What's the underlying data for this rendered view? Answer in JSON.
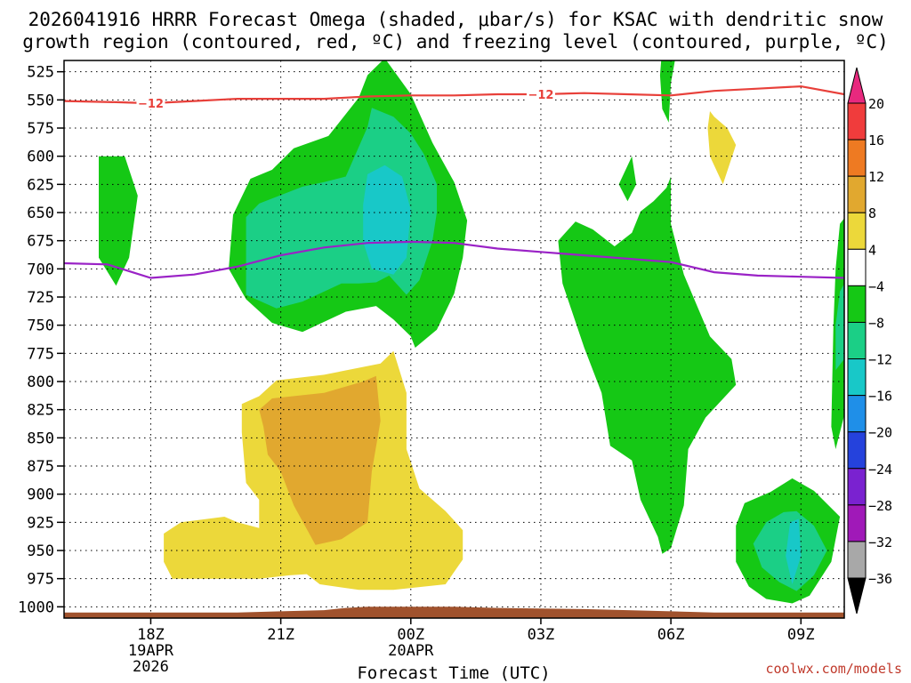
{
  "chart_data": {
    "type": "heatmap",
    "title_line1": "2026041916 HRRR Forecast Omega (shaded, μbar/s) for KSAC with dendritic snow",
    "title_line2": "growth region (contoured, red, ºC) and freezing level (contoured, purple, ºC)",
    "xlabel": "Forecast Time (UTC)",
    "credit": "coolwx.com/models",
    "x_range_hours": [
      16,
      34
    ],
    "y_range_hpa": [
      1010,
      515
    ],
    "y_ticks": [
      525,
      550,
      575,
      600,
      625,
      650,
      675,
      700,
      725,
      750,
      775,
      800,
      825,
      850,
      875,
      900,
      925,
      950,
      975,
      1000
    ],
    "x_ticks": [
      {
        "hour": 18,
        "lines": [
          "18Z",
          "19APR",
          "2026"
        ]
      },
      {
        "hour": 21,
        "lines": [
          "21Z"
        ]
      },
      {
        "hour": 24,
        "lines": [
          "00Z",
          "20APR"
        ]
      },
      {
        "hour": 27,
        "lines": [
          "03Z"
        ]
      },
      {
        "hour": 30,
        "lines": [
          "06Z"
        ]
      },
      {
        "hour": 33,
        "lines": [
          "09Z"
        ]
      }
    ],
    "colorbar": {
      "labels": [
        "20",
        "16",
        "12",
        "8",
        "4",
        "−4",
        "−8",
        "−12",
        "−16",
        "−20",
        "−24",
        "−28",
        "−32",
        "−36"
      ],
      "colors": [
        "#f03c3c",
        "#ee7a22",
        "#e1a82f",
        "#ecd83a",
        "#ffffff",
        "#15c815",
        "#1bcf86",
        "#18c8c8",
        "#1f8fe8",
        "#2542dc",
        "#7a22d0",
        "#a019b8",
        "#a8a8a8"
      ],
      "top_arrow_color": "#e8297e",
      "bottom_arrow_color": "#000000"
    },
    "level_colors": {
      "-8": "#15c815",
      "-12": "#1bcf86",
      "-16": "#18c8c8",
      "4": "#ecd83a",
      "8": "#e1a82f"
    },
    "regions": [
      {
        "level": -8,
        "points": [
          [
            16.8,
            600
          ],
          [
            17.4,
            600
          ],
          [
            17.7,
            635
          ],
          [
            17.5,
            690
          ],
          [
            17.2,
            715
          ],
          [
            16.8,
            690
          ]
        ]
      },
      {
        "level": -8,
        "points": [
          [
            20.8,
            612
          ],
          [
            21.3,
            593
          ],
          [
            22.1,
            582
          ],
          [
            22.8,
            548
          ],
          [
            23.0,
            528
          ],
          [
            23.4,
            513
          ],
          [
            24.0,
            545
          ],
          [
            24.5,
            588
          ],
          [
            25.0,
            623
          ],
          [
            25.3,
            657
          ],
          [
            25.2,
            690
          ],
          [
            25.0,
            722
          ],
          [
            24.6,
            754
          ],
          [
            24.1,
            770
          ],
          [
            24.0,
            760
          ],
          [
            23.6,
            745
          ],
          [
            23.2,
            733
          ],
          [
            22.5,
            738
          ],
          [
            21.5,
            756
          ],
          [
            20.8,
            748
          ],
          [
            20.2,
            727
          ],
          [
            19.8,
            700
          ],
          [
            19.9,
            652
          ],
          [
            20.3,
            620
          ]
        ]
      },
      {
        "level": -12,
        "points": [
          [
            20.2,
            654
          ],
          [
            20.5,
            642
          ],
          [
            21.5,
            627
          ],
          [
            22.0,
            623
          ],
          [
            22.5,
            618
          ],
          [
            23.0,
            574
          ],
          [
            23.1,
            557
          ],
          [
            23.6,
            565
          ],
          [
            24.0,
            580
          ],
          [
            24.3,
            598
          ],
          [
            24.6,
            625
          ],
          [
            24.6,
            650
          ],
          [
            24.5,
            675
          ],
          [
            24.2,
            710
          ],
          [
            23.9,
            723
          ],
          [
            23.5,
            706
          ],
          [
            23.2,
            712
          ],
          [
            22.8,
            713
          ],
          [
            22.4,
            713
          ],
          [
            21.5,
            729
          ],
          [
            20.9,
            735
          ],
          [
            20.2,
            723
          ]
        ]
      },
      {
        "level": -16,
        "points": [
          [
            23.0,
            616
          ],
          [
            23.4,
            608
          ],
          [
            23.8,
            618
          ],
          [
            24.0,
            648
          ],
          [
            23.9,
            690
          ],
          [
            23.6,
            705
          ],
          [
            23.1,
            700
          ],
          [
            22.9,
            676
          ],
          [
            22.9,
            643
          ]
        ]
      },
      {
        "level": -8,
        "points": [
          [
            29.8,
            503
          ],
          [
            30.15,
            503
          ],
          [
            30.0,
            535
          ],
          [
            29.95,
            570
          ],
          [
            29.8,
            558
          ],
          [
            29.75,
            528
          ]
        ]
      },
      {
        "level": -8,
        "points": [
          [
            28.8,
            625
          ],
          [
            29.1,
            600
          ],
          [
            29.2,
            625
          ],
          [
            29.0,
            640
          ]
        ]
      },
      {
        "level": -8,
        "points": [
          [
            27.4,
            675
          ],
          [
            27.8,
            658
          ],
          [
            28.2,
            665
          ],
          [
            28.7,
            680
          ],
          [
            29.1,
            668
          ],
          [
            29.3,
            649
          ],
          [
            29.6,
            640
          ],
          [
            29.9,
            628
          ],
          [
            30.0,
            618
          ],
          [
            30.0,
            660
          ],
          [
            30.3,
            705
          ],
          [
            30.9,
            760
          ],
          [
            31.4,
            780
          ],
          [
            31.5,
            803
          ],
          [
            30.8,
            832
          ],
          [
            30.4,
            860
          ],
          [
            30.3,
            910
          ],
          [
            30.0,
            948
          ],
          [
            29.8,
            953
          ],
          [
            29.7,
            938
          ],
          [
            29.3,
            905
          ],
          [
            29.1,
            870
          ],
          [
            28.6,
            857
          ],
          [
            28.4,
            810
          ],
          [
            28.0,
            770
          ],
          [
            27.5,
            713
          ]
        ]
      },
      {
        "level": -8,
        "points": [
          [
            31.5,
            928
          ],
          [
            31.7,
            908
          ],
          [
            32.3,
            898
          ],
          [
            32.8,
            886
          ],
          [
            33.3,
            897
          ],
          [
            33.9,
            920
          ],
          [
            33.7,
            960
          ],
          [
            33.2,
            990
          ],
          [
            32.8,
            997
          ],
          [
            32.2,
            993
          ],
          [
            31.8,
            982
          ],
          [
            31.5,
            960
          ]
        ]
      },
      {
        "level": -12,
        "points": [
          [
            31.9,
            944
          ],
          [
            32.2,
            925
          ],
          [
            32.6,
            916
          ],
          [
            32.9,
            915
          ],
          [
            33.3,
            928
          ],
          [
            33.6,
            950
          ],
          [
            33.3,
            972
          ],
          [
            32.9,
            986
          ],
          [
            32.5,
            978
          ],
          [
            32.1,
            965
          ]
        ]
      },
      {
        "level": -16,
        "points": [
          [
            32.75,
            925
          ],
          [
            32.95,
            922
          ],
          [
            33.0,
            955
          ],
          [
            32.8,
            980
          ],
          [
            32.65,
            955
          ]
        ]
      },
      {
        "level": -8,
        "points": [
          [
            33.9,
            660
          ],
          [
            34.2,
            645
          ],
          [
            34.3,
            700
          ],
          [
            34.2,
            800
          ],
          [
            33.8,
            860
          ],
          [
            33.7,
            840
          ],
          [
            33.75,
            750
          ],
          [
            33.8,
            700
          ]
        ]
      },
      {
        "level": -12,
        "points": [
          [
            33.9,
            720
          ],
          [
            34.2,
            700
          ],
          [
            34.2,
            770
          ],
          [
            33.8,
            790
          ],
          [
            33.8,
            750
          ]
        ]
      },
      {
        "level": 4,
        "points": [
          [
            20.5,
            813
          ],
          [
            20.9,
            799
          ],
          [
            22.0,
            794
          ],
          [
            23.3,
            784
          ],
          [
            23.6,
            773
          ],
          [
            23.9,
            810
          ],
          [
            23.9,
            860
          ],
          [
            24.2,
            895
          ],
          [
            24.8,
            915
          ],
          [
            25.2,
            932
          ],
          [
            25.2,
            958
          ],
          [
            24.8,
            980
          ],
          [
            23.6,
            985
          ],
          [
            22.8,
            985
          ],
          [
            21.9,
            980
          ],
          [
            21.6,
            971
          ],
          [
            21.2,
            972
          ],
          [
            20.5,
            975
          ],
          [
            18.5,
            975
          ],
          [
            18.3,
            960
          ],
          [
            18.3,
            935
          ],
          [
            18.7,
            925
          ],
          [
            19.7,
            920
          ],
          [
            20.0,
            925
          ],
          [
            20.5,
            930
          ],
          [
            20.5,
            905
          ],
          [
            20.2,
            890
          ],
          [
            20.1,
            845
          ],
          [
            20.1,
            820
          ]
        ]
      },
      {
        "level": 8,
        "points": [
          [
            20.5,
            825
          ],
          [
            20.8,
            815
          ],
          [
            22.0,
            810
          ],
          [
            22.9,
            800
          ],
          [
            23.2,
            795
          ],
          [
            23.3,
            835
          ],
          [
            23.1,
            880
          ],
          [
            23.0,
            925
          ],
          [
            22.4,
            940
          ],
          [
            21.8,
            945
          ],
          [
            21.3,
            910
          ],
          [
            21.0,
            880
          ],
          [
            20.7,
            865
          ],
          [
            20.6,
            840
          ]
        ]
      },
      {
        "level": 4,
        "points": [
          [
            30.9,
            560
          ],
          [
            31.0,
            565
          ],
          [
            31.3,
            575
          ],
          [
            31.5,
            590
          ],
          [
            31.2,
            625
          ],
          [
            30.9,
            600
          ],
          [
            30.85,
            575
          ]
        ]
      }
    ],
    "dgz_contour": {
      "label": "−12",
      "color": "#e8403a",
      "points": [
        [
          16.0,
          551
        ],
        [
          17.2,
          552
        ],
        [
          18.0,
          553
        ],
        [
          19.0,
          551
        ],
        [
          20.0,
          549
        ],
        [
          21.0,
          549
        ],
        [
          22.0,
          549
        ],
        [
          23.0,
          547
        ],
        [
          24.0,
          546
        ],
        [
          25.0,
          546
        ],
        [
          26.0,
          545
        ],
        [
          27.0,
          545
        ],
        [
          28.0,
          544
        ],
        [
          29.0,
          545
        ],
        [
          30.0,
          546
        ],
        [
          31.0,
          542
        ],
        [
          32.0,
          540
        ],
        [
          33.0,
          538
        ],
        [
          34.0,
          545
        ]
      ],
      "label_positions": [
        [
          18.0,
          553
        ],
        [
          27.0,
          545
        ]
      ]
    },
    "freezing_level": {
      "color": "#9a22c6",
      "points": [
        [
          16.0,
          695
        ],
        [
          17.0,
          696
        ],
        [
          17.5,
          702
        ],
        [
          18.0,
          708
        ],
        [
          19.0,
          705
        ],
        [
          20.0,
          698
        ],
        [
          21.0,
          688
        ],
        [
          22.0,
          681
        ],
        [
          23.0,
          677
        ],
        [
          24.0,
          676
        ],
        [
          25.0,
          677
        ],
        [
          26.0,
          682
        ],
        [
          27.0,
          685
        ],
        [
          28.0,
          688
        ],
        [
          29.0,
          691
        ],
        [
          30.0,
          694
        ],
        [
          31.0,
          703
        ],
        [
          32.0,
          706
        ],
        [
          33.0,
          707
        ],
        [
          34.0,
          708
        ]
      ]
    },
    "terrain": {
      "color": "#a0522d",
      "points": [
        [
          16.0,
          1005
        ],
        [
          20.0,
          1005
        ],
        [
          21.0,
          1004
        ],
        [
          22.0,
          1003
        ],
        [
          22.5,
          1001
        ],
        [
          23.0,
          1000
        ],
        [
          25.0,
          1000
        ],
        [
          26.0,
          1001
        ],
        [
          28.0,
          1002
        ],
        [
          30.0,
          1004
        ],
        [
          31.0,
          1005
        ],
        [
          34.0,
          1005
        ]
      ]
    }
  }
}
